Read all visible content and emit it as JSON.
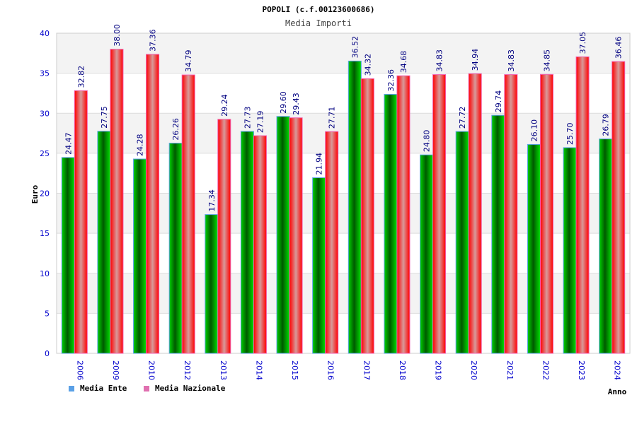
{
  "chart_data": {
    "type": "bar",
    "title": "POPOLI (c.f.00123600686)",
    "subtitle": "Media Importi",
    "xlabel": "Anno",
    "ylabel": "Euro",
    "ylim": [
      0,
      40
    ],
    "yticks": [
      "0",
      "5",
      "10",
      "15",
      "20",
      "25",
      "30",
      "35",
      "40"
    ],
    "categories": [
      "2006",
      "2009",
      "2010",
      "2012",
      "2013",
      "2014",
      "2015",
      "2016",
      "2017",
      "2018",
      "2019",
      "2020",
      "2021",
      "2022",
      "2023",
      "2024"
    ],
    "series": [
      {
        "name": "Media Ente",
        "color": "#00b000",
        "values": [
          24.47,
          27.75,
          24.28,
          26.26,
          17.34,
          27.73,
          29.6,
          21.94,
          36.52,
          32.36,
          24.8,
          27.72,
          29.74,
          26.1,
          25.7,
          26.79
        ],
        "labels": [
          "24.47",
          "27.75",
          "24.28",
          "26.26",
          "17.34",
          "27.73",
          "29.60",
          "21.94",
          "36.52",
          "32.36",
          "24.80",
          "27.72",
          "29.74",
          "26.10",
          "25.70",
          "26.79"
        ]
      },
      {
        "name": "Media Nazionale",
        "color": "#ff1010",
        "values": [
          32.82,
          38.0,
          37.36,
          34.79,
          29.24,
          27.19,
          29.43,
          27.71,
          34.32,
          34.68,
          34.83,
          34.94,
          34.83,
          34.85,
          37.05,
          36.46
        ],
        "labels": [
          "32.82",
          "38.00",
          "37.36",
          "34.79",
          "29.24",
          "27.19",
          "29.43",
          "27.71",
          "34.32",
          "34.68",
          "34.83",
          "34.94",
          "34.83",
          "34.85",
          "37.05",
          "36.46"
        ]
      }
    ],
    "legend": "bottom-left",
    "grid": true
  }
}
